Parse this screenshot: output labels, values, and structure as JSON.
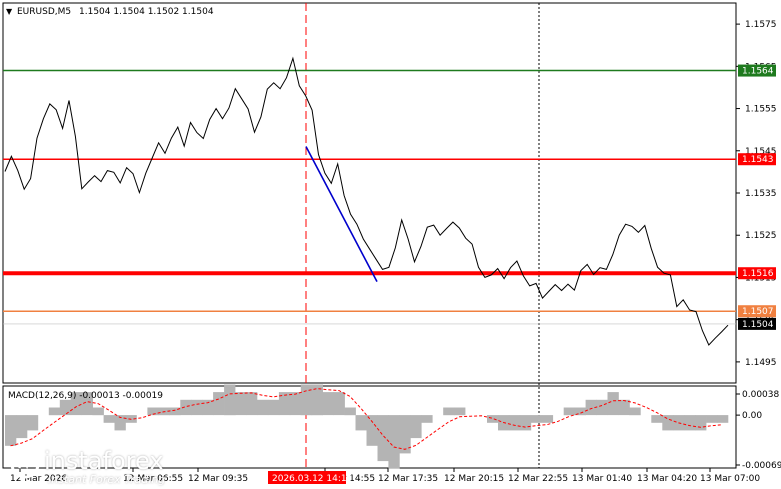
{
  "symbol": {
    "name": "EURUSD,M5",
    "ohlc": "1.1504 1.1504 1.1502 1.1504"
  },
  "macd": {
    "label": "MACD(12,26,9) -0.00013 -0.00019",
    "ticks": [
      "0.00038",
      "0.00",
      "-0.00069"
    ]
  },
  "price_axis": {
    "ticks": [
      "1.1575",
      "1.1565",
      "1.1555",
      "1.1545",
      "1.1535",
      "1.1525",
      "1.1515",
      "1.1505",
      "1.1495"
    ]
  },
  "time_axis": {
    "labels": [
      "12 Mar 2026",
      "12 Mar 06:55",
      "12 Mar 09:35",
      "12 Mar 14:55",
      "12 Mar 17:35",
      "12 Mar 20:15",
      "12 Mar 22:55",
      "13 Mar 01:40",
      "13 Mar 04:20",
      "13 Mar 07:00"
    ],
    "cursor_label": "2026.03.12 14:15"
  },
  "levels": [
    {
      "name": "green-level",
      "label": "1.1564",
      "price": 1.1564,
      "color": "#1e7a1e"
    },
    {
      "name": "red-level-upper",
      "label": "1.1543",
      "price": 1.1543,
      "color": "#ff0000"
    },
    {
      "name": "red-level-lower",
      "label": "1.1516",
      "price": 1.1516,
      "color": "#ff0000"
    },
    {
      "name": "orange-level",
      "label": "1.1507",
      "price": 1.1507,
      "color": "#f08040"
    },
    {
      "name": "current-price",
      "label": "1.1504",
      "price": 1.1504,
      "color": "#000000"
    }
  ],
  "colors": {
    "price_line": "#000000",
    "trend": "#0000cc",
    "macd_hist": "#b4b4b4",
    "macd_signal": "#ff0000",
    "cursor": "#ff0000"
  },
  "brand": {
    "name": "instaforex",
    "tagline": "Instant Forex Trading"
  },
  "chart_data": {
    "type": "line",
    "x_range": [
      "12 Mar 00:00",
      "13 Mar 07:10"
    ],
    "price": [
      1.1541,
      1.1544,
      1.154,
      1.1535,
      1.1539,
      1.1548,
      1.1552,
      1.1557,
      1.1555,
      1.155,
      1.1556,
      1.1549,
      1.1536,
      1.1537,
      1.154,
      1.1538,
      1.154,
      1.1539,
      1.1538,
      1.1541,
      1.1539,
      1.1536,
      1.154,
      1.1543,
      1.1546,
      1.1545,
      1.1548,
      1.155,
      1.1547,
      1.1552,
      1.1549,
      1.1547,
      1.1553,
      1.1555,
      1.1552,
      1.1556,
      1.156,
      1.1557,
      1.1554,
      1.155,
      1.1553,
      1.1559,
      1.1562,
      1.156,
      1.1562,
      1.1566,
      1.1561,
      1.1558,
      1.1554,
      1.1545,
      1.154,
      1.1537,
      1.1541,
      1.1535,
      1.153,
      1.1527,
      1.1525,
      1.1522,
      1.1519,
      1.1516,
      1.1518,
      1.1522,
      1.1528,
      1.1525,
      1.1519,
      1.1522,
      1.1526,
      1.1528,
      1.1525,
      1.1526,
      1.1529,
      1.1527,
      1.1524,
      1.1522,
      1.1518,
      1.1515,
      1.1515,
      1.1518,
      1.1515,
      1.1517,
      1.1518,
      1.1516,
      1.1513,
      1.1513,
      1.1511,
      1.1512,
      1.1513,
      1.1511,
      1.1514,
      1.1512,
      1.1516,
      1.1519,
      1.1516,
      1.1517,
      1.1516,
      1.1521,
      1.1525,
      1.1527,
      1.1528,
      1.1526,
      1.1527,
      1.1521,
      1.1518,
      1.1516,
      1.1515,
      1.1509,
      1.151,
      1.1507,
      1.1506,
      1.1503,
      1.1499,
      1.15,
      1.1503,
      1.1504
    ],
    "macd_hist": [
      -0.0004,
      -0.0003,
      -0.0002,
      0.0,
      0.0001,
      0.0002,
      0.0003,
      0.0003,
      0.0001,
      -0.0001,
      -0.0002,
      -0.0001,
      0.0,
      0.0001,
      0.0001,
      0.0001,
      0.0002,
      0.0002,
      0.0002,
      0.0003,
      0.0004,
      0.0003,
      0.0003,
      0.0002,
      0.0002,
      0.0003,
      0.0003,
      0.0004,
      0.0004,
      0.0003,
      0.0003,
      0.0001,
      -0.0002,
      -0.0004,
      -0.0006,
      -0.0007,
      -0.0005,
      -0.0003,
      -0.0001,
      0.0,
      0.0001,
      0.0001,
      0.0,
      0.0,
      -0.0001,
      -0.0002,
      -0.0002,
      -0.0002,
      -0.0001,
      -0.0001,
      0.0,
      0.0001,
      0.0001,
      0.0002,
      0.0002,
      0.0003,
      0.0002,
      0.0001,
      0.0,
      -0.0001,
      -0.0002,
      -0.0002,
      -0.0002,
      -0.0002,
      -0.0001,
      -0.0001
    ],
    "ylim": [
      1.149,
      1.158
    ],
    "macd_ylim": [
      -0.00069,
      0.00038
    ],
    "trend_line": {
      "start": [
        "12 Mar 14:15",
        1.1546
      ],
      "end": [
        "12 Mar 16:50",
        1.1514
      ]
    }
  }
}
